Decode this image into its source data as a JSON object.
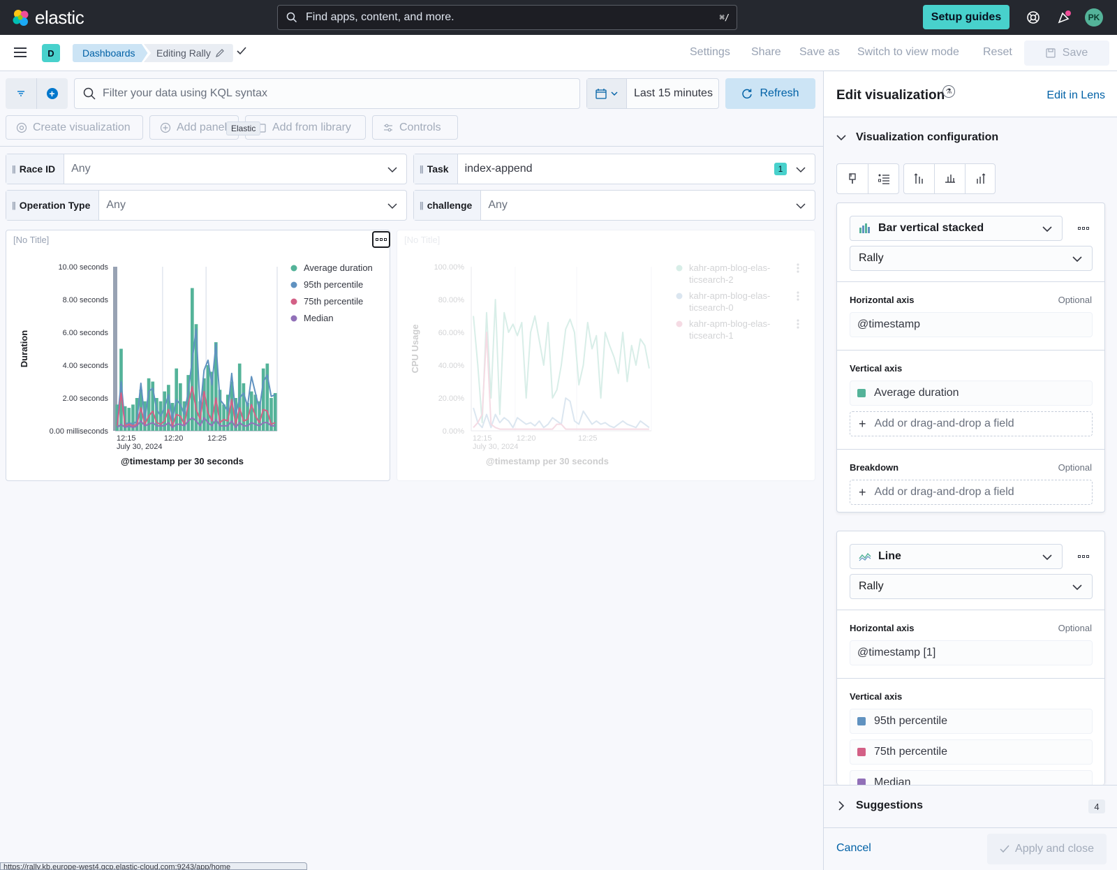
{
  "header": {
    "logo_text": "elastic",
    "search_placeholder": "Find apps, content, and more.",
    "search_shortcut": "⌘/",
    "setup_guides": "Setup guides",
    "avatar_initials": "PK"
  },
  "appbar": {
    "space_initial": "D",
    "breadcrumb_dashboards": "Dashboards",
    "breadcrumb_current": "Editing Rally",
    "menu": {
      "settings": "Settings",
      "share": "Share",
      "save_as": "Save as",
      "switch_view": "Switch to view mode",
      "reset": "Reset",
      "save": "Save"
    }
  },
  "querybar": {
    "kql_placeholder": "Filter your data using KQL syntax",
    "time_range": "Last 15 minutes",
    "refresh": "Refresh"
  },
  "toolbar": {
    "create_visualization": "Create visualization",
    "add_panel": "Add panel",
    "add_from_library": "Add from library",
    "controls": "Controls",
    "tooltip": "Elastic"
  },
  "controls": [
    {
      "label": "Race ID",
      "value": "Any"
    },
    {
      "label": "Task",
      "value": "index-append",
      "count": "1"
    },
    {
      "label": "Operation Type",
      "value": "Any"
    },
    {
      "label": "challenge",
      "value": "Any"
    }
  ],
  "panel_left": {
    "title": "[No Title]",
    "chart_data": {
      "type": "bar",
      "ylabel": "Duration",
      "xlabel": "@timestamp per 30 seconds",
      "x_sub_label": "July 30, 2024",
      "x_ticks": [
        "12:15",
        "12:20",
        "12:25"
      ],
      "y_ticks": [
        "0.00 milliseconds",
        "2.00 seconds",
        "4.00 seconds",
        "6.00 seconds",
        "8.00 seconds",
        "10.00 seconds"
      ],
      "ylim": [
        0,
        10
      ],
      "legend_position": "right",
      "series": [
        {
          "name": "Average duration",
          "color": "#54b399",
          "kind": "bar",
          "values": [
            1.6,
            5.0,
            1.5,
            1.4,
            1.6,
            2.0,
            2.5,
            1.8,
            3.2,
            3.0,
            2.0,
            1.8,
            2.4,
            2.8,
            1.7,
            3.8,
            2.9,
            1.8,
            3.4,
            8.7,
            6.5,
            1.8,
            3.2,
            4.0,
            3.6,
            5.4,
            2.5,
            1.6,
            2.2,
            3.0,
            2.0,
            4.1,
            2.9,
            1.7,
            2.4,
            2.2,
            1.8,
            3.8,
            4.1,
            2.0,
            2.3
          ]
        },
        {
          "name": "95th percentile",
          "color": "#6092c0",
          "kind": "line",
          "values": [
            0.4,
            3.0,
            0.4,
            0.5,
            0.4,
            0.6,
            2.9,
            0.7,
            2.4,
            2.6,
            1.3,
            0.9,
            1.4,
            2.2,
            0.7,
            1.9,
            1.6,
            1.0,
            2.4,
            4.3,
            6.2,
            1.2,
            3.7,
            4.3,
            2.8,
            5.3,
            1.9,
            1.6,
            1.2,
            3.5,
            1.0,
            2.0,
            2.3,
            1.5,
            3.3,
            2.3,
            1.3,
            3.0,
            3.4,
            2.1,
            2.2
          ]
        },
        {
          "name": "75th percentile",
          "color": "#d36086",
          "kind": "line",
          "values": [
            0.3,
            2.3,
            0.3,
            0.4,
            0.3,
            0.4,
            1.4,
            0.4,
            0.9,
            1.2,
            0.5,
            0.4,
            0.6,
            1.3,
            0.3,
            1.0,
            0.9,
            0.4,
            1.6,
            2.7,
            1.3,
            0.7,
            2.4,
            1.1,
            0.6,
            2.0,
            0.5,
            0.7,
            0.6,
            1.9,
            0.4,
            1.4,
            0.6,
            0.7,
            1.6,
            0.9,
            0.5,
            1.3,
            1.2,
            0.4,
            0.5
          ]
        },
        {
          "name": "Median",
          "color": "#9170b8",
          "kind": "line",
          "values": [
            0.2,
            0.4,
            0.2,
            0.3,
            0.2,
            0.3,
            0.6,
            0.3,
            0.4,
            0.5,
            0.3,
            0.3,
            0.3,
            0.5,
            0.2,
            0.4,
            0.4,
            0.3,
            0.6,
            0.8,
            0.6,
            0.3,
            0.8,
            0.5,
            0.3,
            0.7,
            0.3,
            0.3,
            0.3,
            0.6,
            0.2,
            0.5,
            0.3,
            0.3,
            0.5,
            0.4,
            0.3,
            0.5,
            0.5,
            0.3,
            0.3
          ]
        }
      ]
    }
  },
  "panel_right": {
    "title": "[No Title]",
    "chart_data": {
      "type": "line",
      "ylabel": "CPU Usage",
      "xlabel": "@timestamp per 30 seconds",
      "x_sub_label": "July 30, 2024",
      "x_ticks": [
        "12:15",
        "12:20",
        "12:25"
      ],
      "y_ticks": [
        "0.00%",
        "20.00%",
        "40.00%",
        "60.00%",
        "80.00%",
        "100.00%"
      ],
      "ylim": [
        0,
        100
      ],
      "legend_position": "right",
      "series": [
        {
          "name": "kahr-apm-blog-elasticsearch-2",
          "legend_lines": [
            "kahr-apm-blog-elas-",
            "ticsearch-2"
          ],
          "color": "#54b399",
          "values": [
            70,
            40,
            5,
            72,
            20,
            80,
            10,
            72,
            60,
            65,
            58,
            66,
            20,
            60,
            70,
            55,
            40,
            66,
            20,
            25,
            40,
            62,
            68,
            60,
            28,
            40,
            66,
            50,
            58,
            20,
            60,
            52,
            45,
            35,
            60,
            30,
            52,
            40,
            56,
            52,
            38
          ]
        },
        {
          "name": "kahr-apm-blog-elasticsearch-0",
          "legend_lines": [
            "kahr-apm-blog-elas-",
            "ticsearch-0"
          ],
          "color": "#6092c0",
          "values": [
            14,
            5,
            2,
            10,
            2,
            10,
            5,
            8,
            6,
            2,
            8,
            6,
            4,
            5,
            3,
            6,
            2,
            4,
            8,
            6,
            4,
            20,
            18,
            6,
            4,
            12,
            8,
            4,
            6,
            4,
            5,
            3,
            2,
            4,
            6,
            4,
            3,
            2,
            6,
            4,
            2
          ]
        },
        {
          "name": "kahr-apm-blog-elasticsearch-1",
          "legend_lines": [
            "kahr-apm-blog-elas-",
            "ticsearch-1"
          ],
          "color": "#d36086",
          "values": [
            2,
            5,
            10,
            60,
            4,
            2,
            1,
            1,
            1,
            1,
            1,
            1,
            1,
            1,
            1,
            1,
            1,
            1,
            1,
            4,
            4,
            1,
            1,
            1,
            1,
            1,
            1,
            1,
            1,
            1,
            1,
            1,
            1,
            1,
            1,
            1,
            1,
            1,
            1,
            1,
            1
          ]
        }
      ]
    }
  },
  "flyout": {
    "title": "Edit visualization",
    "edit_in_lens": "Edit in Lens",
    "accordion": "Visualization configuration",
    "layers": [
      {
        "chart_type": "Bar vertical stacked",
        "data_view": "Rally",
        "horizontal_axis_label": "Horizontal axis",
        "horizontal_axis_optional": "Optional",
        "horizontal_axis_value": "@timestamp",
        "vertical_axis_label": "Vertical axis",
        "vertical_fields": [
          {
            "name": "Average duration",
            "color": "#54b399"
          }
        ],
        "add_field": "Add or drag-and-drop a field",
        "breakdown_label": "Breakdown",
        "breakdown_optional": "Optional",
        "breakdown_add": "Add or drag-and-drop a field"
      },
      {
        "chart_type": "Line",
        "data_view": "Rally",
        "horizontal_axis_label": "Horizontal axis",
        "horizontal_axis_optional": "Optional",
        "horizontal_axis_value": "@timestamp [1]",
        "vertical_axis_label": "Vertical axis",
        "vertical_fields": [
          {
            "name": "95th percentile",
            "color": "#6092c0"
          },
          {
            "name": "75th percentile",
            "color": "#d36086"
          },
          {
            "name": "Median",
            "color": "#9170b8"
          }
        ]
      }
    ],
    "suggestions": "Suggestions",
    "suggestions_count": "4",
    "cancel": "Cancel",
    "apply_and_close": "Apply and close"
  },
  "status_url": "https://rally.kb.europe-west4.gcp.elastic-cloud.com:9243/app/home"
}
